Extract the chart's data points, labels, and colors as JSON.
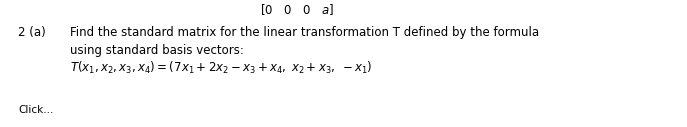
{
  "top_bracket": "$\\left[0 \\quad 0 \\quad 0 \\quad a\\right]$",
  "number_label": "2 (a)",
  "line1": "Find the standard matrix for the linear transformation T defined by the formula",
  "line2": "using standard basis vectors:",
  "formula": "$T(x_1, x_2, x_3, x_4) = (7x_1 + 2x_2 - x_3 + x_4,\\; x_2 + x_3,\\; -x_1)$",
  "bottom_text": "Click...",
  "bg_color": "#ffffff",
  "text_color": "#000000",
  "font_size": 8.5,
  "fig_width": 6.87,
  "fig_height": 1.27,
  "dpi": 100
}
